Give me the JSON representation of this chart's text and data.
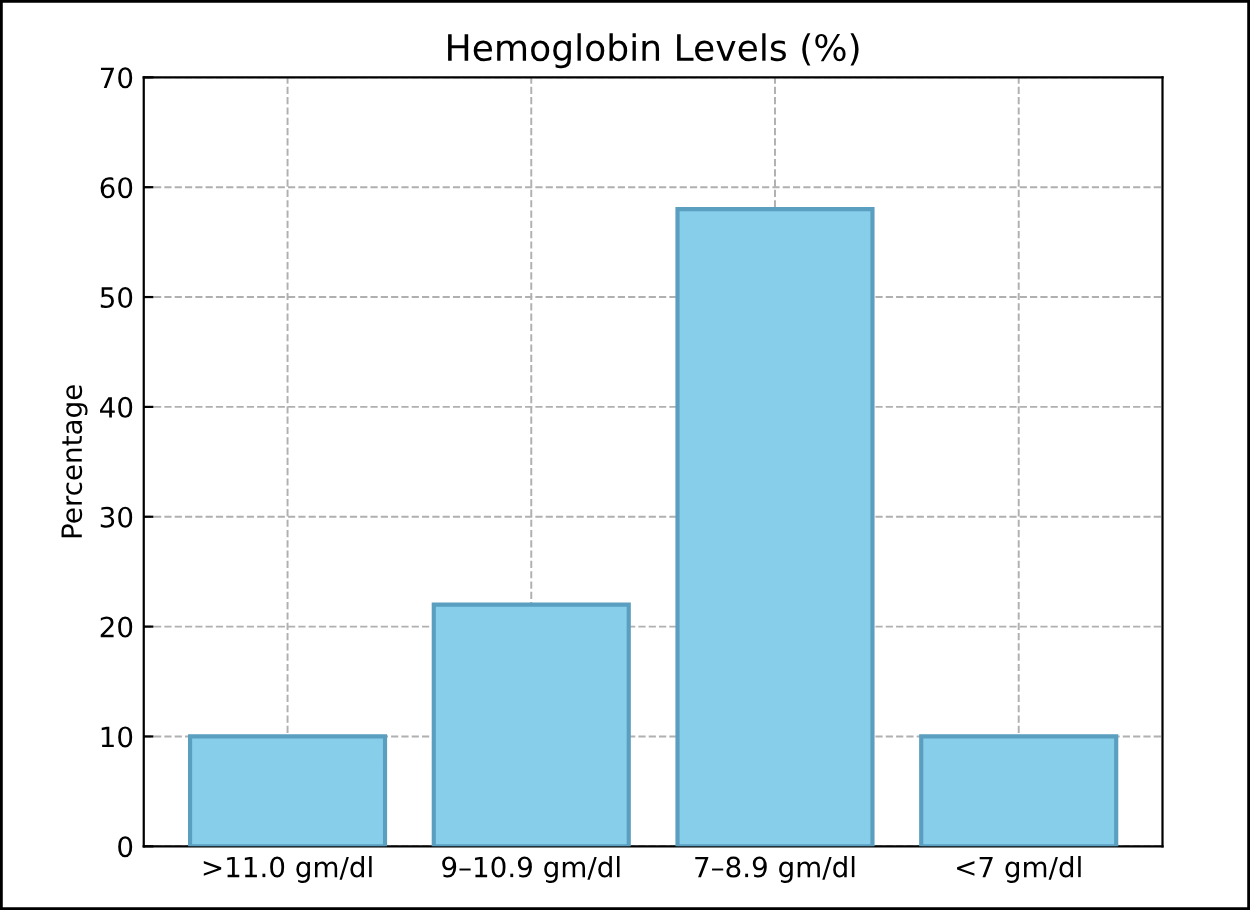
{
  "chart_data": {
    "type": "bar",
    "title": "Hemoglobin Levels (%)",
    "ylabel": "Percentage",
    "categories": [
      ">11.0 gm/dl",
      "9–10.9 gm/dl",
      "7–8.9 gm/dl",
      "<7 gm/dl"
    ],
    "values": [
      10,
      22,
      58,
      10
    ],
    "color": "#87ceeb",
    "ylim": [
      0,
      70
    ],
    "yticks": [
      0,
      10,
      20,
      30,
      40,
      50,
      60,
      70
    ],
    "grid": true
  }
}
